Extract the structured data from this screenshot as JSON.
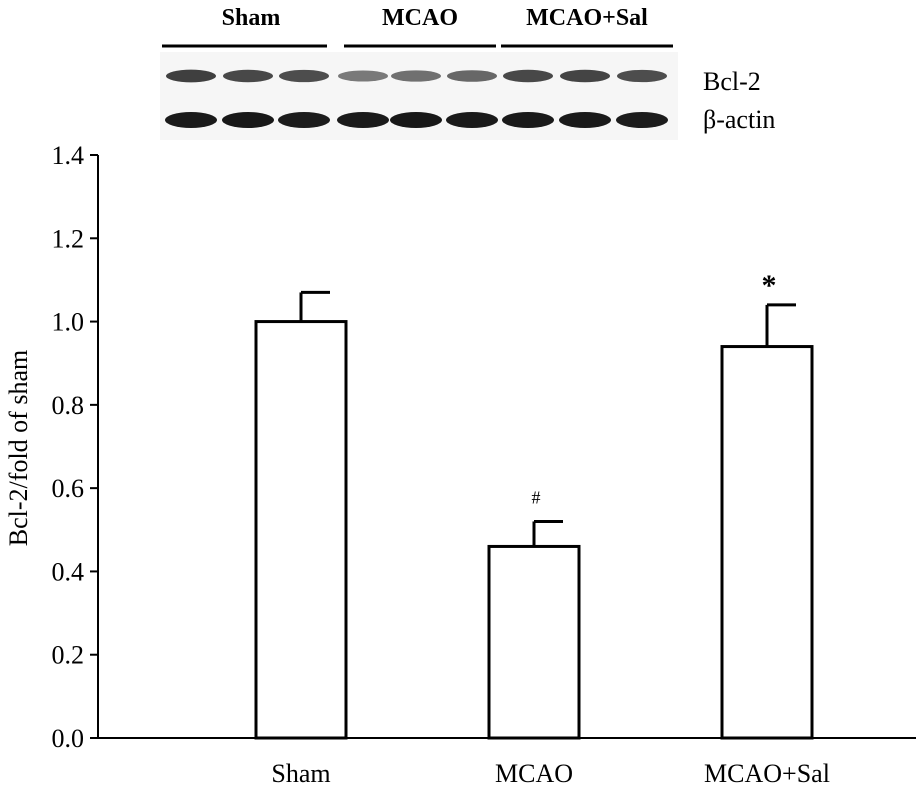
{
  "chart_data": {
    "type": "bar",
    "title": "",
    "xlabel": "",
    "ylabel": "Bcl-2/fold of sham",
    "ylim": [
      0,
      1.4
    ],
    "yticks": [
      0.0,
      0.2,
      0.4,
      0.6,
      0.8,
      1.0,
      1.2,
      1.4
    ],
    "ytick_labels": [
      "0.0",
      "0.2",
      "0.4",
      "0.6",
      "0.8",
      "1.0",
      "1.2",
      "1.4"
    ],
    "grid": false,
    "categories": [
      "Sham",
      "MCAO",
      "MCAO+Sal"
    ],
    "values": [
      1.0,
      0.46,
      0.94
    ],
    "errors": [
      0.07,
      0.06,
      0.1
    ],
    "annotations": [
      "",
      "#",
      "*"
    ],
    "colors": {
      "bar_fill": "#ffffff",
      "bar_stroke": "#000000",
      "band_dark": "#141414"
    }
  },
  "blot": {
    "group_labels": [
      "Sham",
      "MCAO",
      "MCAO+Sal"
    ],
    "row_labels": [
      "Bcl-2",
      "β-actin"
    ],
    "lanes_per_group": 3,
    "bcl2_intensity": [
      0.78,
      0.74,
      0.72,
      0.52,
      0.56,
      0.6,
      0.74,
      0.76,
      0.72
    ],
    "actin_intensity": [
      0.95,
      0.96,
      0.94,
      0.95,
      0.96,
      0.95,
      0.95,
      0.95,
      0.94
    ]
  }
}
